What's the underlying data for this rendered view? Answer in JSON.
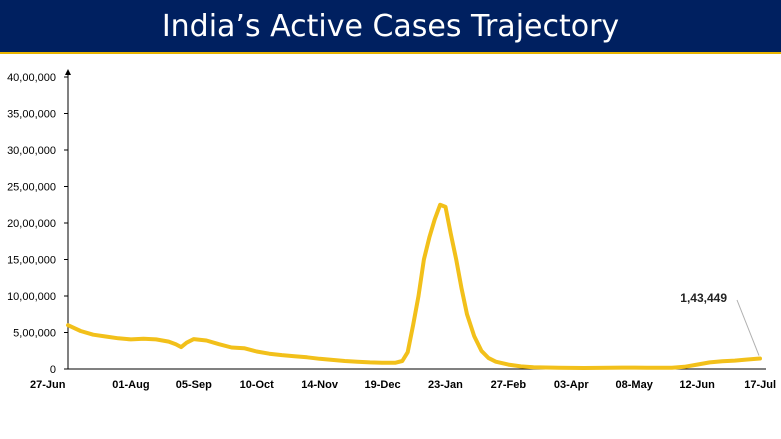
{
  "title": "India’s Active Cases Trajectory",
  "colors": {
    "title_bar": "#002060",
    "title_rule": "#e8b400",
    "line": "#f2c01a",
    "axis": "#000000",
    "annotation_leader": "#b0b0b0"
  },
  "chart_data": {
    "type": "line",
    "title": "India’s Active Cases Trajectory",
    "xlabel": "",
    "ylabel": "",
    "ylim": [
      0,
      4000000
    ],
    "grid": false,
    "legend": "none",
    "y_ticks": [
      {
        "value": 0,
        "label": "0"
      },
      {
        "value": 500000,
        "label": "5,00,000"
      },
      {
        "value": 1000000,
        "label": "10,00,000"
      },
      {
        "value": 1500000,
        "label": "15,00,000"
      },
      {
        "value": 2000000,
        "label": "20,00,000"
      },
      {
        "value": 2500000,
        "label": "25,00,000"
      },
      {
        "value": 3000000,
        "label": "30,00,000"
      },
      {
        "value": 3500000,
        "label": "35,00,000"
      },
      {
        "value": 4000000,
        "label": "40,00,000"
      }
    ],
    "x_ticks": [
      {
        "x": "27-Jun",
        "label": "27-Jun"
      },
      {
        "x": "01-Aug",
        "label": "01-Aug"
      },
      {
        "x": "05-Sep",
        "label": "05-Sep"
      },
      {
        "x": "10-Oct",
        "label": "10-Oct"
      },
      {
        "x": "14-Nov",
        "label": "14-Nov"
      },
      {
        "x": "19-Dec",
        "label": "19-Dec"
      },
      {
        "x": "23-Jan",
        "label": "23-Jan"
      },
      {
        "x": "27-Feb",
        "label": "27-Feb"
      },
      {
        "x": "03-Apr",
        "label": "03-Apr"
      },
      {
        "x": "08-May",
        "label": "08-May"
      },
      {
        "x": "12-Jun",
        "label": "12-Jun"
      },
      {
        "x": "17-Jul",
        "label": "17-Jul"
      }
    ],
    "series": [
      {
        "points": [
          {
            "x": "27-Jun",
            "y": 600000
          },
          {
            "x": "04-Jul",
            "y": 520000
          },
          {
            "x": "11-Jul",
            "y": 470000
          },
          {
            "x": "18-Jul",
            "y": 445000
          },
          {
            "x": "25-Jul",
            "y": 420000
          },
          {
            "x": "01-Aug",
            "y": 405000
          },
          {
            "x": "08-Aug",
            "y": 415000
          },
          {
            "x": "15-Aug",
            "y": 405000
          },
          {
            "x": "22-Aug",
            "y": 375000
          },
          {
            "x": "26-Aug",
            "y": 340000
          },
          {
            "x": "29-Aug",
            "y": 300000
          },
          {
            "x": "01-Sep",
            "y": 360000
          },
          {
            "x": "05-Sep",
            "y": 410000
          },
          {
            "x": "12-Sep",
            "y": 390000
          },
          {
            "x": "19-Sep",
            "y": 340000
          },
          {
            "x": "26-Sep",
            "y": 295000
          },
          {
            "x": "03-Oct",
            "y": 285000
          },
          {
            "x": "10-Oct",
            "y": 240000
          },
          {
            "x": "17-Oct",
            "y": 210000
          },
          {
            "x": "24-Oct",
            "y": 190000
          },
          {
            "x": "31-Oct",
            "y": 175000
          },
          {
            "x": "07-Nov",
            "y": 160000
          },
          {
            "x": "14-Nov",
            "y": 140000
          },
          {
            "x": "21-Nov",
            "y": 125000
          },
          {
            "x": "28-Nov",
            "y": 110000
          },
          {
            "x": "05-Dec",
            "y": 100000
          },
          {
            "x": "12-Dec",
            "y": 90000
          },
          {
            "x": "19-Dec",
            "y": 85000
          },
          {
            "x": "26-Dec",
            "y": 85000
          },
          {
            "x": "30-Dec",
            "y": 110000
          },
          {
            "x": "02-Jan",
            "y": 230000
          },
          {
            "x": "05-Jan",
            "y": 600000
          },
          {
            "x": "08-Jan",
            "y": 1000000
          },
          {
            "x": "11-Jan",
            "y": 1500000
          },
          {
            "x": "14-Jan",
            "y": 1800000
          },
          {
            "x": "17-Jan",
            "y": 2050000
          },
          {
            "x": "20-Jan",
            "y": 2250000
          },
          {
            "x": "23-Jan",
            "y": 2220000
          },
          {
            "x": "26-Jan",
            "y": 1850000
          },
          {
            "x": "29-Jan",
            "y": 1500000
          },
          {
            "x": "01-Feb",
            "y": 1100000
          },
          {
            "x": "04-Feb",
            "y": 750000
          },
          {
            "x": "08-Feb",
            "y": 450000
          },
          {
            "x": "12-Feb",
            "y": 250000
          },
          {
            "x": "16-Feb",
            "y": 150000
          },
          {
            "x": "20-Feb",
            "y": 100000
          },
          {
            "x": "27-Feb",
            "y": 60000
          },
          {
            "x": "06-Mar",
            "y": 35000
          },
          {
            "x": "13-Mar",
            "y": 25000
          },
          {
            "x": "20-Mar",
            "y": 20000
          },
          {
            "x": "27-Mar",
            "y": 17000
          },
          {
            "x": "03-Apr",
            "y": 15000
          },
          {
            "x": "10-Apr",
            "y": 14000
          },
          {
            "x": "17-Apr",
            "y": 15000
          },
          {
            "x": "24-Apr",
            "y": 17000
          },
          {
            "x": "01-May",
            "y": 19000
          },
          {
            "x": "08-May",
            "y": 19000
          },
          {
            "x": "15-May",
            "y": 18000
          },
          {
            "x": "22-May",
            "y": 17000
          },
          {
            "x": "29-May",
            "y": 18000
          },
          {
            "x": "05-Jun",
            "y": 30000
          },
          {
            "x": "12-Jun",
            "y": 60000
          },
          {
            "x": "19-Jun",
            "y": 90000
          },
          {
            "x": "26-Jun",
            "y": 105000
          },
          {
            "x": "03-Jul",
            "y": 115000
          },
          {
            "x": "10-Jul",
            "y": 130000
          },
          {
            "x": "17-Jul",
            "y": 143449
          }
        ]
      }
    ],
    "annotations": [
      {
        "text": "1,43,449",
        "x": "17-Jul",
        "y": 143449
      }
    ]
  }
}
